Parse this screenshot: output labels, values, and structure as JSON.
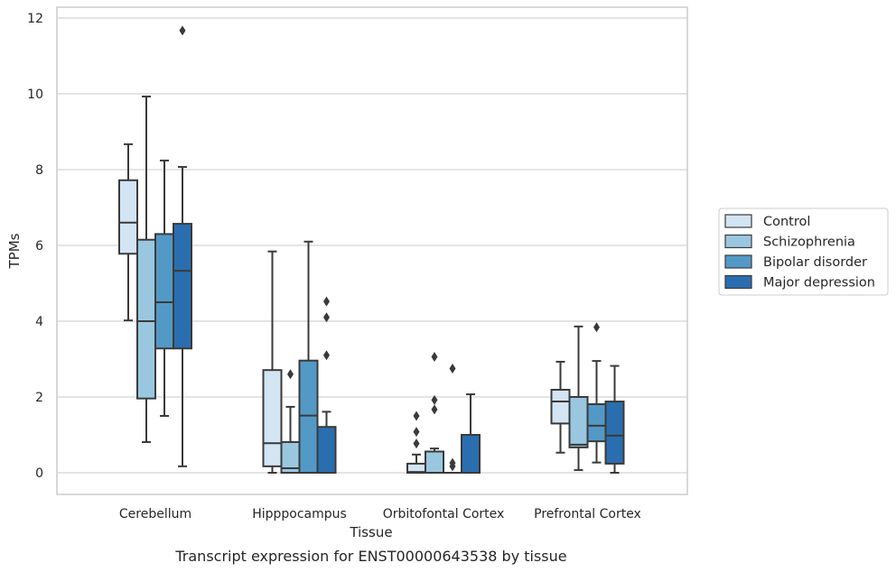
{
  "chart_data": {
    "type": "box",
    "title": "",
    "caption": "Transcript expression for ENST00000643538 by tissue",
    "xlabel": "Tissue",
    "ylabel": "TPMs",
    "ylim": [
      -0.55,
      12.25
    ],
    "yticks": [
      0,
      2,
      4,
      6,
      8,
      10,
      12
    ],
    "grid": "horizontal",
    "legend_position": "right",
    "categories": [
      "Cerebellum",
      "Hipppocampus",
      "Orbitofontal Cortex",
      "Prefrontal Cortex"
    ],
    "series": [
      {
        "name": "Control",
        "color": "#d3e4f3",
        "boxes": [
          {
            "whisker_low": 4.02,
            "q1": 5.78,
            "median": 6.6,
            "q3": 7.72,
            "whisker_high": 8.67,
            "outliers": []
          },
          {
            "whisker_low": 0.0,
            "q1": 0.17,
            "median": 0.78,
            "q3": 2.71,
            "whisker_high": 5.84,
            "outliers": []
          },
          {
            "whisker_low": 0.0,
            "q1": 0.0,
            "median": 0.02,
            "q3": 0.24,
            "whisker_high": 0.48,
            "outliers": [
              0.77,
              1.08,
              1.5
            ]
          },
          {
            "whisker_low": 0.53,
            "q1": 1.3,
            "median": 1.88,
            "q3": 2.19,
            "whisker_high": 2.93,
            "outliers": []
          }
        ]
      },
      {
        "name": "Schizophrenia",
        "color": "#9ac7e0",
        "boxes": [
          {
            "whisker_low": 0.81,
            "q1": 1.96,
            "median": 4.0,
            "q3": 6.15,
            "whisker_high": 9.93,
            "outliers": []
          },
          {
            "whisker_low": 0.0,
            "q1": 0.0,
            "median": 0.12,
            "q3": 0.81,
            "whisker_high": 1.74,
            "outliers": [
              2.6
            ]
          },
          {
            "whisker_low": 0.0,
            "q1": 0.0,
            "median": 0.0,
            "q3": 0.56,
            "whisker_high": 0.64,
            "outliers": [
              1.67,
              1.92,
              3.06
            ]
          },
          {
            "whisker_low": 0.07,
            "q1": 0.67,
            "median": 0.74,
            "q3": 2.0,
            "whisker_high": 3.86,
            "outliers": []
          }
        ]
      },
      {
        "name": "Bipolar disorder",
        "color": "#5399c6",
        "boxes": [
          {
            "whisker_low": 1.5,
            "q1": 3.28,
            "median": 4.5,
            "q3": 6.3,
            "whisker_high": 8.24,
            "outliers": []
          },
          {
            "whisker_low": 0.0,
            "q1": 0.0,
            "median": 1.51,
            "q3": 2.96,
            "whisker_high": 6.1,
            "outliers": []
          },
          {
            "whisker_low": 0.0,
            "q1": 0.0,
            "median": 0.0,
            "q3": 0.0,
            "whisker_high": 0.0,
            "outliers": [
              0.17,
              0.26,
              2.75
            ]
          },
          {
            "whisker_low": 0.27,
            "q1": 0.83,
            "median": 1.24,
            "q3": 1.81,
            "whisker_high": 2.95,
            "outliers": [
              3.84
            ]
          }
        ]
      },
      {
        "name": "Major depression",
        "color": "#2a6eaf",
        "boxes": [
          {
            "whisker_low": 0.17,
            "q1": 3.28,
            "median": 5.33,
            "q3": 6.57,
            "whisker_high": 8.07,
            "outliers": [
              11.67
            ]
          },
          {
            "whisker_low": 0.0,
            "q1": 0.0,
            "median": 0.0,
            "q3": 1.21,
            "whisker_high": 1.61,
            "outliers": [
              3.1,
              4.1,
              4.52
            ]
          },
          {
            "whisker_low": 0.0,
            "q1": 0.0,
            "median": 0.0,
            "q3": 1.0,
            "whisker_high": 2.07,
            "outliers": []
          },
          {
            "whisker_low": 0.0,
            "q1": 0.24,
            "median": 0.98,
            "q3": 1.88,
            "whisker_high": 2.82,
            "outliers": []
          }
        ]
      }
    ]
  }
}
